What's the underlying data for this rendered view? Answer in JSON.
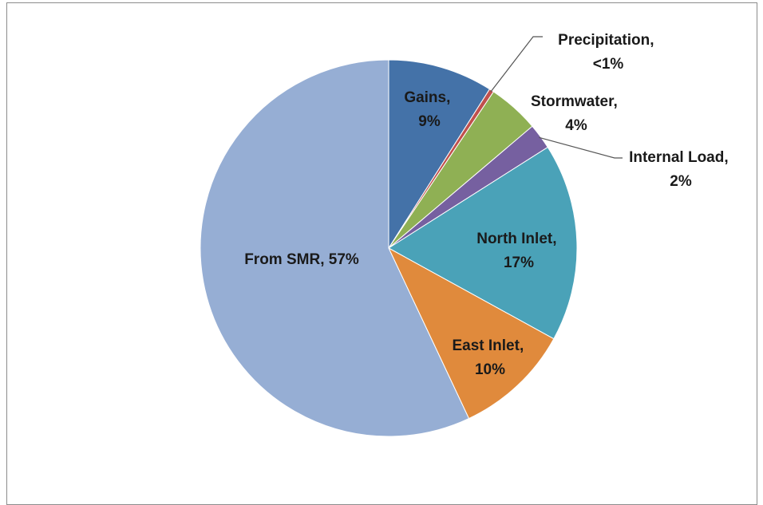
{
  "chart_data": {
    "type": "pie",
    "title": "",
    "legend": "none",
    "slices": [
      {
        "label": "Gains",
        "value_text": "9%",
        "value": 9,
        "color": "#4472a8"
      },
      {
        "label": "Precipitation",
        "value_text": "<1%",
        "value": 0.4,
        "color": "#c0504d"
      },
      {
        "label": "Stormwater",
        "value_text": "4%",
        "value": 4.4,
        "color": "#8fb054"
      },
      {
        "label": "Internal Load",
        "value_text": "2%",
        "value": 2.2,
        "color": "#7660a0"
      },
      {
        "label": "North Inlet",
        "value_text": "17%",
        "value": 17,
        "color": "#4aa2b8"
      },
      {
        "label": "East Inlet",
        "value_text": "10%",
        "value": 10,
        "color": "#e08a3c"
      },
      {
        "label": "From SMR",
        "value_text": "57%",
        "value": 57,
        "color": "#96aed4"
      }
    ]
  }
}
